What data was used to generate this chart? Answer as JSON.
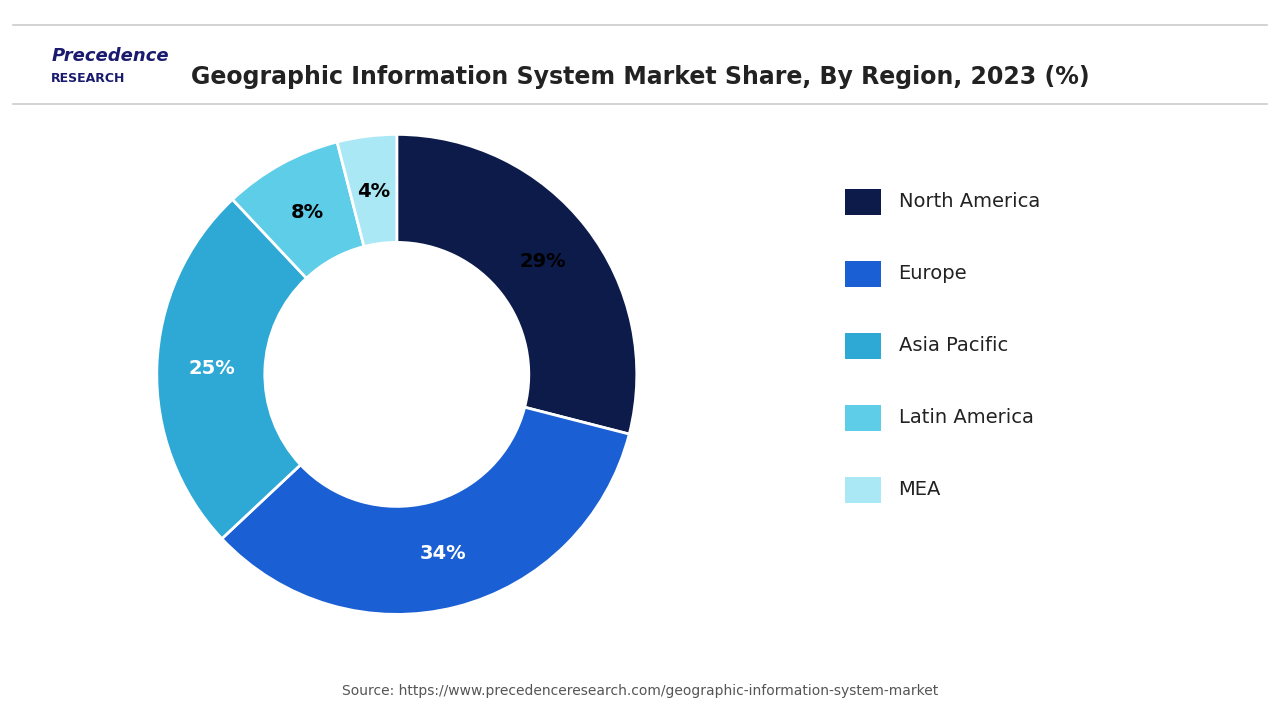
{
  "title": "Geographic Information System Market Share, By Region, 2023 (%)",
  "slices": [
    {
      "label": "North America",
      "value": 29,
      "color": "#0d1b4b",
      "text_color": "black"
    },
    {
      "label": "Europe",
      "value": 34,
      "color": "#1a5fd4",
      "text_color": "white"
    },
    {
      "label": "Asia Pacific",
      "value": 25,
      "color": "#2ea8d5",
      "text_color": "white"
    },
    {
      "label": "Latin America",
      "value": 8,
      "color": "#5ecde8",
      "text_color": "black"
    },
    {
      "label": "MEA",
      "value": 4,
      "color": "#abe8f5",
      "text_color": "black"
    }
  ],
  "source_text": "Source: https://www.precedenceresearch.com/geographic-information-system-market",
  "background_color": "#ffffff",
  "title_fontsize": 17,
  "label_fontsize": 14,
  "legend_fontsize": 14,
  "source_fontsize": 10,
  "logo_text_top": "Precedence",
  "logo_text_bottom": "RESEARCH"
}
